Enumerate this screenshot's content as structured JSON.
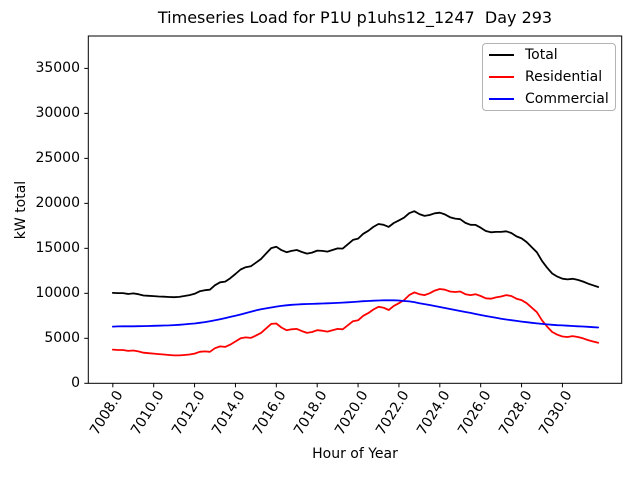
{
  "chart_data": {
    "type": "line",
    "title": "Timeseries Load for P1U p1uhs12_1247  Day 293",
    "xlabel": "Hour of Year",
    "ylabel": "kW total",
    "xlim": [
      7006.8,
      7032.9
    ],
    "ylim": [
      0,
      38600
    ],
    "grid": false,
    "legend_position": "upper right",
    "xticks": [
      7008,
      7010,
      7012,
      7014,
      7016,
      7018,
      7020,
      7022,
      7024,
      7026,
      7028,
      7030
    ],
    "xtick_labels": [
      "7008.0",
      "7010.0",
      "7012.0",
      "7014.0",
      "7016.0",
      "7018.0",
      "7020.0",
      "7022.0",
      "7024.0",
      "7026.0",
      "7028.0",
      "7030.0"
    ],
    "yticks": [
      0,
      5000,
      10000,
      15000,
      20000,
      25000,
      30000,
      35000
    ],
    "ytick_labels": [
      "0",
      "5000",
      "10000",
      "15000",
      "20000",
      "25000",
      "30000",
      "35000"
    ],
    "x_start": 7008.0,
    "x_step": 0.25,
    "n_points": 96,
    "series": [
      {
        "name": "Total",
        "color": "#000000",
        "values": [
          10050,
          10020,
          10030,
          9930,
          9990,
          9900,
          9760,
          9720,
          9690,
          9650,
          9620,
          9590,
          9570,
          9600,
          9700,
          9800,
          9950,
          10220,
          10350,
          10400,
          10900,
          11220,
          11300,
          11680,
          12150,
          12650,
          12900,
          13000,
          13400,
          13820,
          14430,
          15030,
          15170,
          14800,
          14570,
          14720,
          14810,
          14590,
          14410,
          14530,
          14750,
          14720,
          14640,
          14810,
          14990,
          14970,
          15450,
          15940,
          16080,
          16620,
          16950,
          17380,
          17700,
          17620,
          17380,
          17820,
          18100,
          18400,
          18900,
          19130,
          18800,
          18600,
          18700,
          18890,
          18960,
          18770,
          18460,
          18300,
          18240,
          17830,
          17620,
          17600,
          17290,
          16930,
          16780,
          16830,
          16830,
          16890,
          16710,
          16330,
          16110,
          15690,
          15120,
          14560,
          13600,
          12850,
          12200,
          11860,
          11630,
          11550,
          11620,
          11490,
          11310,
          11080,
          10890,
          10700
        ]
      },
      {
        "name": "Residential",
        "color": "#ff0000",
        "values": [
          3750,
          3700,
          3700,
          3600,
          3650,
          3550,
          3400,
          3350,
          3300,
          3250,
          3200,
          3150,
          3100,
          3100,
          3150,
          3200,
          3300,
          3500,
          3550,
          3500,
          3900,
          4100,
          4050,
          4300,
          4650,
          5000,
          5100,
          5050,
          5300,
          5600,
          6100,
          6600,
          6650,
          6200,
          5900,
          6000,
          6050,
          5800,
          5600,
          5700,
          5900,
          5850,
          5750,
          5900,
          6050,
          6000,
          6450,
          6900,
          7000,
          7500,
          7800,
          8200,
          8500,
          8400,
          8150,
          8600,
          8900,
          9250,
          9800,
          10100,
          9900,
          9800,
          10000,
          10300,
          10480,
          10400,
          10200,
          10150,
          10200,
          9900,
          9800,
          9900,
          9700,
          9450,
          9400,
          9550,
          9650,
          9800,
          9700,
          9400,
          9250,
          8900,
          8400,
          7900,
          7000,
          6300,
          5700,
          5400,
          5200,
          5150,
          5250,
          5150,
          5000,
          4800,
          4650,
          4500
        ]
      },
      {
        "name": "Commercial",
        "color": "#0000ff",
        "values": [
          6300,
          6320,
          6330,
          6330,
          6340,
          6350,
          6360,
          6370,
          6390,
          6400,
          6420,
          6440,
          6470,
          6500,
          6550,
          6600,
          6650,
          6720,
          6800,
          6900,
          7000,
          7120,
          7250,
          7380,
          7500,
          7650,
          7800,
          7950,
          8100,
          8220,
          8330,
          8430,
          8520,
          8600,
          8670,
          8720,
          8760,
          8790,
          8810,
          8830,
          8850,
          8870,
          8890,
          8910,
          8940,
          8970,
          9000,
          9040,
          9080,
          9120,
          9150,
          9180,
          9200,
          9220,
          9230,
          9220,
          9200,
          9150,
          9100,
          9030,
          8900,
          8800,
          8700,
          8590,
          8480,
          8370,
          8260,
          8150,
          8040,
          7930,
          7820,
          7700,
          7590,
          7480,
          7380,
          7280,
          7180,
          7090,
          7010,
          6930,
          6860,
          6790,
          6720,
          6660,
          6600,
          6550,
          6500,
          6460,
          6430,
          6400,
          6370,
          6340,
          6310,
          6280,
          6240,
          6200
        ]
      }
    ]
  }
}
